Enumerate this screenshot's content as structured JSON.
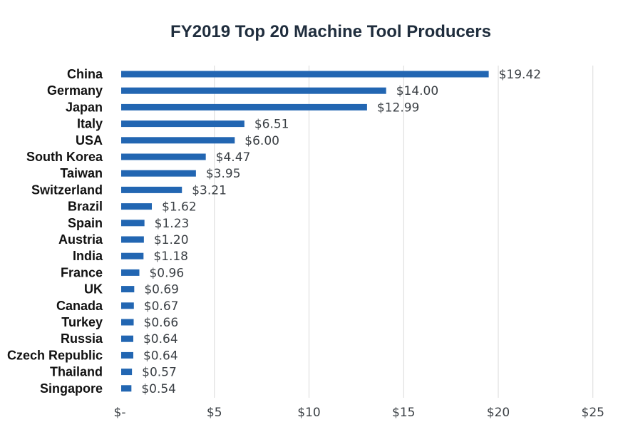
{
  "chart_data": {
    "type": "bar",
    "orientation": "horizontal",
    "title": "FY2019 Top 20 Machine Tool Producers",
    "xlabel": "",
    "ylabel": "",
    "xlim": [
      0,
      25
    ],
    "xticks": [
      0,
      5,
      10,
      15,
      20,
      25
    ],
    "xtick_labels": [
      "$-",
      "$5",
      "$10",
      "$15",
      "$20",
      "$25"
    ],
    "grid": true,
    "bar_color": "#2266b2",
    "categories": [
      "China",
      "Germany",
      "Japan",
      "Italy",
      "USA",
      "South Korea",
      "Taiwan",
      "Switzerland",
      "Brazil",
      "Spain",
      "Austria",
      "India",
      "France",
      "UK",
      "Canada",
      "Turkey",
      "Russia",
      "Czech Republic",
      "Thailand",
      "Singapore"
    ],
    "values": [
      19.42,
      14.0,
      12.99,
      6.51,
      6.0,
      4.47,
      3.95,
      3.21,
      1.62,
      1.23,
      1.2,
      1.18,
      0.96,
      0.69,
      0.67,
      0.66,
      0.64,
      0.64,
      0.57,
      0.54
    ],
    "value_labels": [
      "$19.42",
      "$14.00",
      "$12.99",
      "$6.51",
      "$6.00",
      "$4.47",
      "$3.95",
      "$3.21",
      "$1.62",
      "$1.23",
      "$1.20",
      "$1.18",
      "$0.96",
      "$0.69",
      "$0.67",
      "$0.66",
      "$0.64",
      "$0.64",
      "$0.57",
      "$0.54"
    ]
  }
}
